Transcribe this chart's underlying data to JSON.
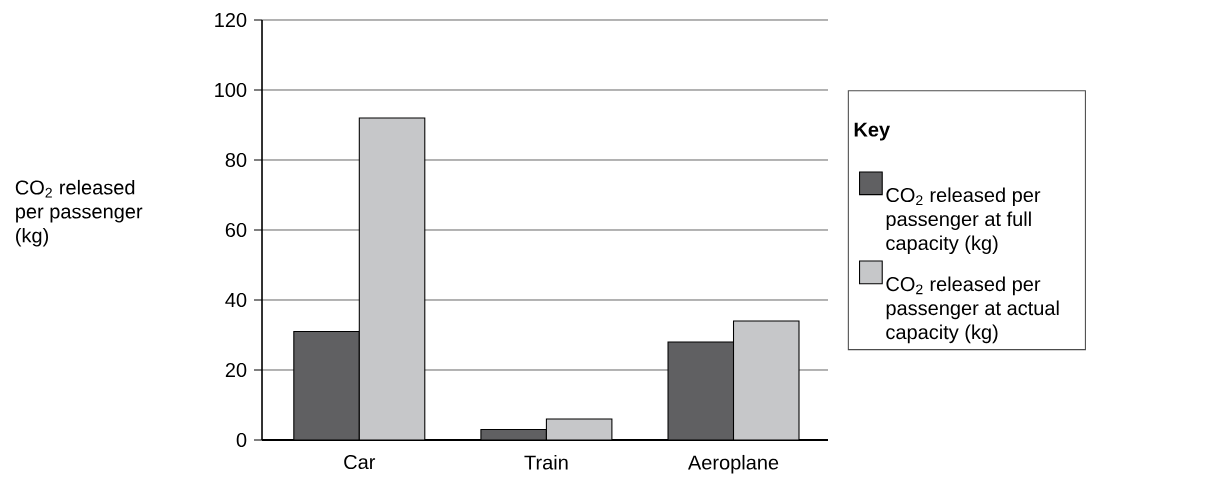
{
  "chart_data": {
    "type": "bar",
    "ylabel": "CO$_{2}$ released per passenger (kg)",
    "legend_title": "**Key**",
    "categories": [
      "Car",
      "Train",
      "Aeroplane"
    ],
    "series": [
      {
        "name": "CO$_{2}$ released per passenger at full capacity (kg)",
        "color": "#606062",
        "values": [
          31,
          3,
          28
        ]
      },
      {
        "name": "CO$_{2}$ released per passenger at actual capacity (kg)",
        "color": "#c6c7c9",
        "values": [
          92,
          6,
          34
        ]
      }
    ],
    "ylim": [
      0,
      120
    ],
    "yticks": [
      0,
      20,
      40,
      60,
      80,
      100,
      120
    ],
    "grid": "y",
    "legend": "right"
  }
}
